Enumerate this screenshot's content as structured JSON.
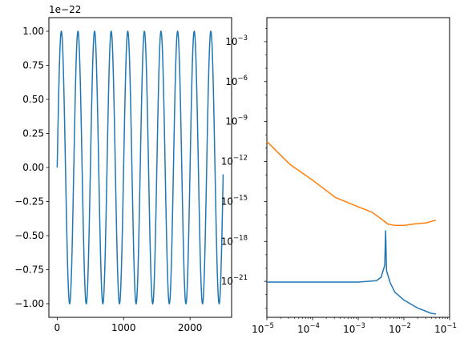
{
  "chart_data": [
    {
      "type": "line",
      "title": "",
      "xlabel": "",
      "ylabel": "",
      "offset_label": "1e−22",
      "xlim": [
        -125,
        2625
      ],
      "ylim": [
        -1.1,
        1.1
      ],
      "x_tick_labels": [
        "0",
        "1000",
        "2000"
      ],
      "x_ticks": [
        0,
        1000,
        2000
      ],
      "y_tick_labels": [
        "−1.00",
        "−0.75",
        "−0.50",
        "−0.25",
        "0.00",
        "0.25",
        "0.50",
        "0.75",
        "1.00"
      ],
      "y_ticks": [
        -1.0,
        -0.75,
        -0.5,
        -0.25,
        0.0,
        0.25,
        0.5,
        0.75,
        1.0
      ],
      "series": [
        {
          "color": "#1f77b4",
          "function": "sine",
          "amplitude": 1.0,
          "period": 250,
          "x_start": 0,
          "x_end": 2499
        }
      ],
      "grid": false
    },
    {
      "type": "line",
      "title": "",
      "xlabel": "",
      "ylabel": "",
      "xscale": "log",
      "yscale": "log",
      "xlim_exp": [
        -5,
        -1
      ],
      "ylim_exp": [
        -23.7,
        -1.2
      ],
      "x_tick_exponents": [
        "−5",
        "−4",
        "−3",
        "−2",
        "−1"
      ],
      "x_tick_values": [
        -5,
        -4,
        -3,
        -2,
        -1
      ],
      "y_tick_exponents": [
        "−21",
        "−18",
        "−15",
        "−12",
        "−9",
        "−6",
        "−3"
      ],
      "y_tick_values": [
        -21,
        -18,
        -15,
        -12,
        -9,
        -6,
        -3
      ],
      "tick_base": "10",
      "series": [
        {
          "color": "#ff7f0e",
          "log10_x": [
            -5,
            -4.5,
            -4,
            -3.5,
            -3,
            -2.7,
            -2.5,
            -2.35,
            -2.2,
            -2,
            -1.8,
            -1.5,
            -1.3
          ],
          "log10_y": [
            -10.5,
            -12.2,
            -13.4,
            -14.7,
            -15.4,
            -15.8,
            -16.3,
            -16.7,
            -16.8,
            -16.8,
            -16.7,
            -16.6,
            -16.4
          ]
        },
        {
          "color": "#1f77b4",
          "log10_x": [
            -5,
            -4,
            -3,
            -2.6,
            -2.5,
            -2.42,
            -2.4,
            -2.38,
            -2.3,
            -2.2,
            -2,
            -1.7,
            -1.4,
            -1.3
          ],
          "log10_y": [
            -21.05,
            -21.05,
            -21.05,
            -20.95,
            -20.7,
            -19.8,
            -17.2,
            -20.2,
            -21.1,
            -21.8,
            -22.4,
            -23.0,
            -23.4,
            -23.45
          ]
        }
      ],
      "grid": false
    }
  ]
}
